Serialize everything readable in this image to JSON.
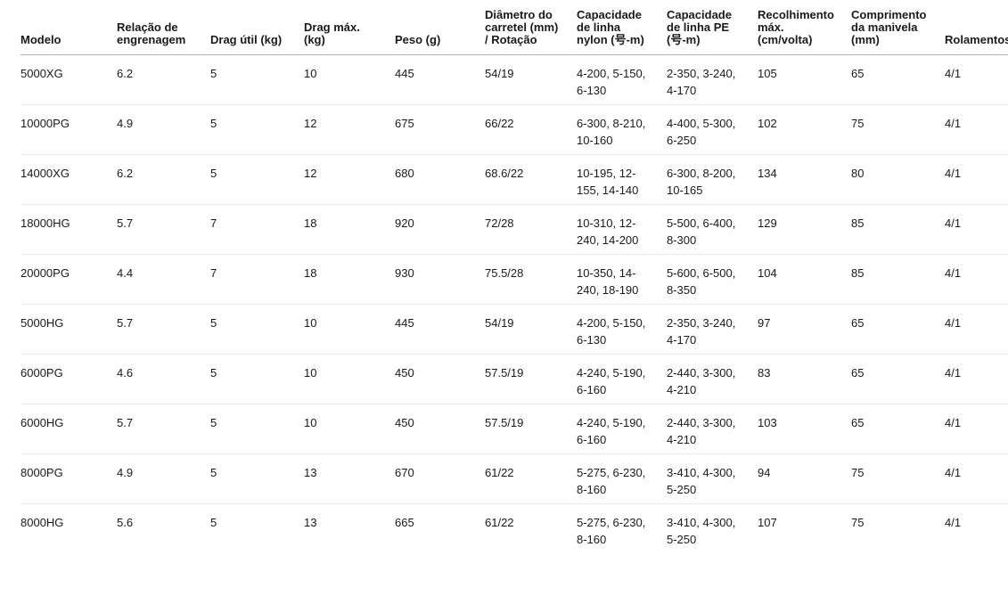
{
  "table": {
    "columns": [
      {
        "key": "modelo",
        "label": "Modelo"
      },
      {
        "key": "relacao-engrenagem",
        "label": "Relação de engrenagem"
      },
      {
        "key": "drag-util",
        "label": "Drag útil (kg)"
      },
      {
        "key": "drag-max",
        "label": "Drag máx. (kg)"
      },
      {
        "key": "peso",
        "label": "Peso (g)"
      },
      {
        "key": "diametro-carretel-rotacao",
        "label": "Diâmetro do carretel (mm) / Rotação"
      },
      {
        "key": "capacidade-linha-nylon",
        "label": "Capacidade de linha nylon (号-m)"
      },
      {
        "key": "capacidade-linha-pe",
        "label": "Capacidade de linha PE (号-m)"
      },
      {
        "key": "recolhimento-max",
        "label": "Recolhimento máx. (cm/volta)"
      },
      {
        "key": "comprimento-manivela",
        "label": "Comprimento da manivela (mm)"
      },
      {
        "key": "rolamentos",
        "label": "Rolamentos"
      }
    ],
    "rows": [
      {
        "cells": [
          "5000XG",
          "6.2",
          "5",
          "10",
          "445",
          "54/19",
          "4-200, 5-150, 6-130",
          "2-350, 3-240, 4-170",
          "105",
          "65",
          "4/1"
        ]
      },
      {
        "cells": [
          "10000PG",
          "4.9",
          "5",
          "12",
          "675",
          "66/22",
          "6-300, 8-210, 10-160",
          "4-400, 5-300, 6-250",
          "102",
          "75",
          "4/1"
        ]
      },
      {
        "cells": [
          "14000XG",
          "6.2",
          "5",
          "12",
          "680",
          "68.6/22",
          "10-195, 12-155, 14-140",
          "6-300, 8-200, 10-165",
          "134",
          "80",
          "4/1"
        ]
      },
      {
        "cells": [
          "18000HG",
          "5.7",
          "7",
          "18",
          "920",
          "72/28",
          "10-310, 12-240, 14-200",
          "5-500, 6-400, 8-300",
          "129",
          "85",
          "4/1"
        ]
      },
      {
        "cells": [
          "20000PG",
          "4.4",
          "7",
          "18",
          "930",
          "75.5/28",
          "10-350, 14-240, 18-190",
          "5-600, 6-500, 8-350",
          "104",
          "85",
          "4/1"
        ]
      },
      {
        "cells": [
          "5000HG",
          "5.7",
          "5",
          "10",
          "445",
          "54/19",
          "4-200, 5-150, 6-130",
          "2-350, 3-240, 4-170",
          "97",
          "65",
          "4/1"
        ]
      },
      {
        "cells": [
          "6000PG",
          "4.6",
          "5",
          "10",
          "450",
          "57.5/19",
          "4-240, 5-190, 6-160",
          "2-440, 3-300, 4-210",
          "83",
          "65",
          "4/1"
        ]
      },
      {
        "cells": [
          "6000HG",
          "5.7",
          "5",
          "10",
          "450",
          "57.5/19",
          "4-240, 5-190, 6-160",
          "2-440, 3-300, 4-210",
          "103",
          "65",
          "4/1"
        ]
      },
      {
        "cells": [
          "8000PG",
          "4.9",
          "5",
          "13",
          "670",
          "61/22",
          "5-275, 6-230, 8-160",
          "3-410, 4-300, 5-250",
          "94",
          "75",
          "4/1"
        ]
      },
      {
        "cells": [
          "8000HG",
          "5.6",
          "5",
          "13",
          "665",
          "61/22",
          "5-275, 6-230, 8-160",
          "3-410, 4-300, 5-250",
          "107",
          "75",
          "4/1"
        ]
      }
    ]
  }
}
